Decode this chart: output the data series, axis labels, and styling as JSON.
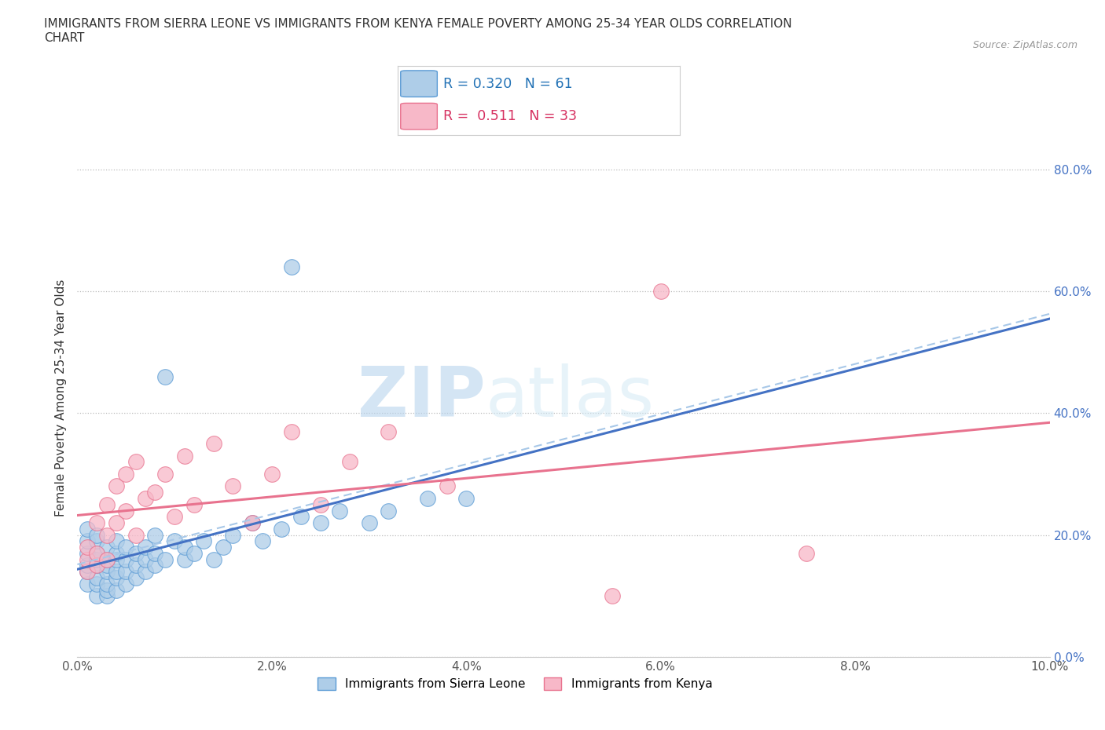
{
  "title": "IMMIGRANTS FROM SIERRA LEONE VS IMMIGRANTS FROM KENYA FEMALE POVERTY AMONG 25-34 YEAR OLDS CORRELATION\nCHART",
  "source_text": "Source: ZipAtlas.com",
  "ylabel": "Female Poverty Among 25-34 Year Olds",
  "xlim": [
    0.0,
    0.1
  ],
  "ylim": [
    0.0,
    0.85
  ],
  "ytick_vals": [
    0.0,
    0.2,
    0.4,
    0.6,
    0.8
  ],
  "xtick_vals": [
    0.0,
    0.02,
    0.04,
    0.06,
    0.08,
    0.1
  ],
  "sierra_leone_color": "#aecde8",
  "sierra_leone_edge_color": "#5b9bd5",
  "kenya_color": "#f7b8c8",
  "kenya_edge_color": "#e8728e",
  "trend_sierra_color": "#4472c4",
  "trend_kenya_color": "#e8728e",
  "trend_sierra_dash_color": "#a8c8e8",
  "r_sierra": 0.32,
  "n_sierra": 61,
  "r_kenya": 0.511,
  "n_kenya": 33,
  "watermark_zip": "ZIP",
  "watermark_atlas": "atlas",
  "legend_label_sierra": "Immigrants from Sierra Leone",
  "legend_label_kenya": "Immigrants from Kenya",
  "sl_x": [
    0.001,
    0.001,
    0.001,
    0.001,
    0.001,
    0.001,
    0.002,
    0.002,
    0.002,
    0.002,
    0.002,
    0.002,
    0.002,
    0.002,
    0.003,
    0.003,
    0.003,
    0.003,
    0.003,
    0.003,
    0.003,
    0.004,
    0.004,
    0.004,
    0.004,
    0.004,
    0.004,
    0.005,
    0.005,
    0.005,
    0.005,
    0.006,
    0.006,
    0.006,
    0.007,
    0.007,
    0.007,
    0.008,
    0.008,
    0.008,
    0.009,
    0.009,
    0.01,
    0.011,
    0.011,
    0.012,
    0.013,
    0.014,
    0.015,
    0.016,
    0.018,
    0.019,
    0.021,
    0.023,
    0.025,
    0.027,
    0.03,
    0.032,
    0.036,
    0.04,
    0.022
  ],
  "sl_y": [
    0.12,
    0.14,
    0.15,
    0.17,
    0.19,
    0.21,
    0.1,
    0.12,
    0.13,
    0.15,
    0.16,
    0.17,
    0.19,
    0.2,
    0.1,
    0.11,
    0.12,
    0.14,
    0.15,
    0.16,
    0.18,
    0.11,
    0.13,
    0.14,
    0.16,
    0.17,
    0.19,
    0.12,
    0.14,
    0.16,
    0.18,
    0.13,
    0.15,
    0.17,
    0.14,
    0.16,
    0.18,
    0.15,
    0.17,
    0.2,
    0.16,
    0.46,
    0.19,
    0.16,
    0.18,
    0.17,
    0.19,
    0.16,
    0.18,
    0.2,
    0.22,
    0.19,
    0.21,
    0.23,
    0.22,
    0.24,
    0.22,
    0.24,
    0.26,
    0.26,
    0.64
  ],
  "ke_x": [
    0.001,
    0.001,
    0.001,
    0.002,
    0.002,
    0.002,
    0.003,
    0.003,
    0.003,
    0.004,
    0.004,
    0.005,
    0.005,
    0.006,
    0.006,
    0.007,
    0.008,
    0.009,
    0.01,
    0.011,
    0.012,
    0.014,
    0.016,
    0.018,
    0.02,
    0.022,
    0.025,
    0.028,
    0.032,
    0.038,
    0.055,
    0.06,
    0.075
  ],
  "ke_y": [
    0.14,
    0.16,
    0.18,
    0.15,
    0.17,
    0.22,
    0.16,
    0.2,
    0.25,
    0.22,
    0.28,
    0.24,
    0.3,
    0.2,
    0.32,
    0.26,
    0.27,
    0.3,
    0.23,
    0.33,
    0.25,
    0.35,
    0.28,
    0.22,
    0.3,
    0.37,
    0.25,
    0.32,
    0.37,
    0.28,
    0.1,
    0.6,
    0.17
  ]
}
